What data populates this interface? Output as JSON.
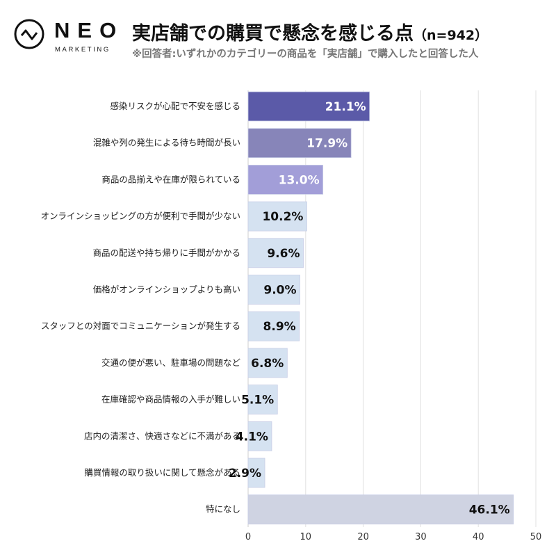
{
  "logo": {
    "word": "NEO",
    "sub": "MARKETING"
  },
  "header": {
    "title": "実店舗での購買で懸念を感じる点",
    "sample": "（n=942）",
    "subtitle": "※回答者:いずれかのカテゴリーの商品を「実店舗」で購入したと回答した人"
  },
  "chart_data": {
    "type": "bar",
    "orientation": "horizontal",
    "title": "実店舗での購買で懸念を感じる点（n=942）",
    "categories": [
      "感染リスクが心配で不安を感じる",
      "混雑や列の発生による待ち時間が長い",
      "商品の品揃えや在庫が限られている",
      "オンラインショッピングの方が便利で手間が少ない",
      "商品の配送や持ち帰りに手間がかかる",
      "価格がオンラインショップよりも高い",
      "スタッフとの対面でコミュニケーションが発生する",
      "交通の便が悪い、駐車場の問題など",
      "在庫確認や商品情報の入手が難しい",
      "店内の清潔さ、快適さなどに不満がある",
      "購買情報の取り扱いに関して懸念がある",
      "特になし"
    ],
    "values": [
      21.1,
      17.9,
      13.0,
      10.2,
      9.6,
      9.0,
      8.9,
      6.8,
      5.1,
      4.1,
      2.9,
      46.1
    ],
    "labels": [
      "21.1%",
      "17.9%",
      "13.0%",
      "10.2%",
      "9.6%",
      "9.0%",
      "8.9%",
      "6.8%",
      "5.1%",
      "4.1%",
      "2.9%",
      "46.1%"
    ],
    "colors": [
      "#5b5aa8",
      "#8785b9",
      "#a29ed8",
      "#d5e2f1",
      "#d5e2f1",
      "#d5e2f1",
      "#d5e2f1",
      "#d5e2f1",
      "#d5e2f1",
      "#d5e2f1",
      "#d5e2f1",
      "#cfd3e2"
    ],
    "label_colors": [
      "#ffffff",
      "#ffffff",
      "#ffffff",
      "#111111",
      "#111111",
      "#111111",
      "#111111",
      "#111111",
      "#111111",
      "#111111",
      "#111111",
      "#111111"
    ],
    "xlim": [
      0,
      50
    ],
    "xticks": [
      0,
      10,
      20,
      30,
      40,
      50
    ],
    "grid": true,
    "xlabel": "",
    "ylabel": ""
  }
}
